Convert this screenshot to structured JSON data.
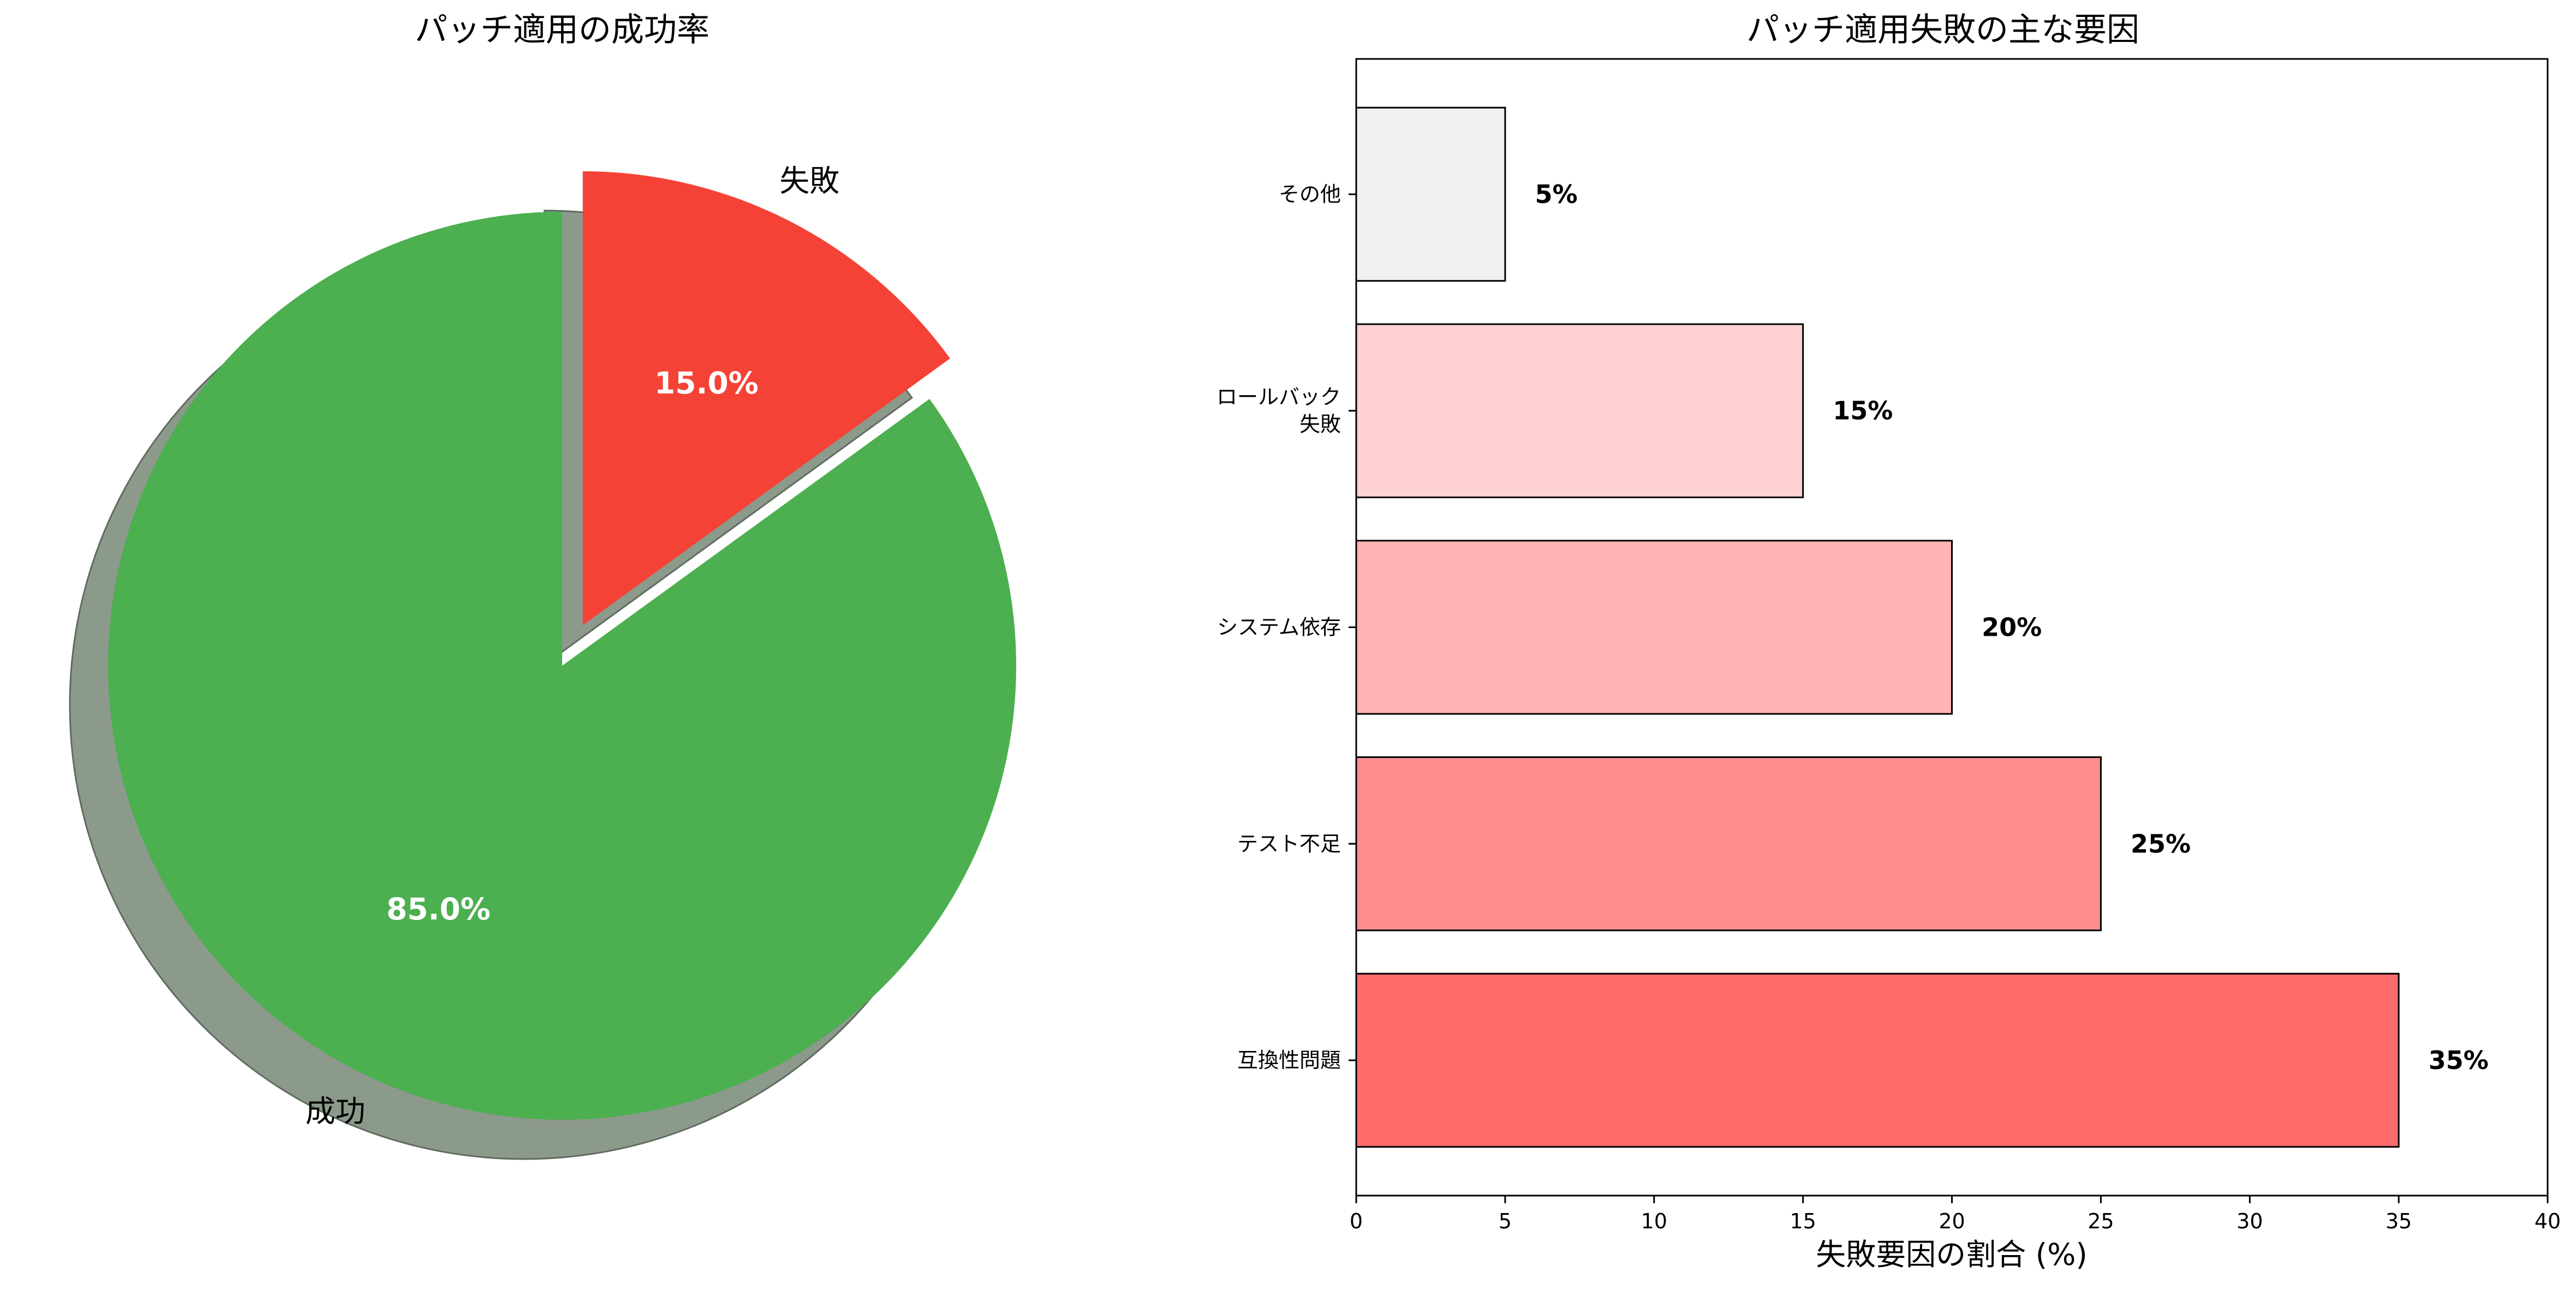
{
  "chart_data": [
    {
      "type": "pie",
      "title": "パッチ適用の成功率",
      "labels": [
        "成功",
        "失敗"
      ],
      "values": [
        85,
        15
      ],
      "percent_labels": [
        "85.0%",
        "15.0%"
      ],
      "colors": [
        "#4caf50",
        "#f44336"
      ],
      "explode": [
        0,
        0.1
      ],
      "shadow": true,
      "start_angle_deg": 90
    },
    {
      "type": "bar",
      "orientation": "horizontal",
      "title": "パッチ適用失敗の主な要因",
      "categories": [
        "互換性問題",
        "テスト不足",
        "システム依存",
        "ロールバック\n失敗",
        "その他"
      ],
      "category_lines": [
        [
          "互換性問題"
        ],
        [
          "テスト不足"
        ],
        [
          "システム依存"
        ],
        [
          "ロールバック",
          "失敗"
        ],
        [
          "その他"
        ]
      ],
      "values": [
        35,
        25,
        20,
        15,
        5
      ],
      "value_labels": [
        "35%",
        "25%",
        "20%",
        "15%",
        "5%"
      ],
      "colors": [
        "#ff6b6b",
        "#ff8e8e",
        "#ffb3b3",
        "#ffd1d1",
        "#f0f0f0"
      ],
      "xlabel": "失敗要因の割合 (%)",
      "ylabel": "",
      "xlim": [
        0,
        40
      ],
      "xticks": [
        0,
        5,
        10,
        15,
        20,
        25,
        30,
        35,
        40
      ],
      "grid": false
    }
  ]
}
